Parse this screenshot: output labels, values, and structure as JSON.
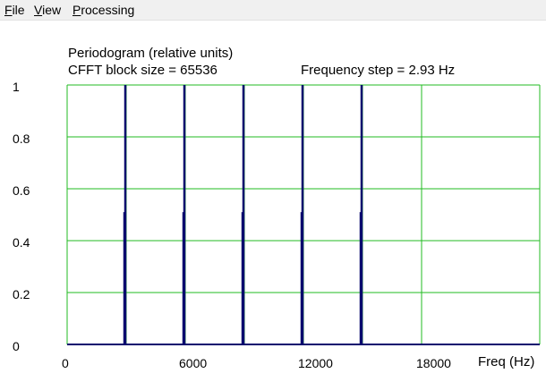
{
  "menu": {
    "items": [
      {
        "mnemonic": "F",
        "rest": "ile"
      },
      {
        "mnemonic": "V",
        "rest": "iew"
      },
      {
        "mnemonic": "P",
        "rest": "rocessing"
      }
    ]
  },
  "header": {
    "title": "Periodogram  (relative units)",
    "block_size": "CFFT block size = 65536",
    "freq_step": "Frequency step =  2.93  Hz"
  },
  "colors": {
    "grid": "#22bb22",
    "bars": "#0a0a6e",
    "axis": "#0a0a6e"
  },
  "chart_data": {
    "type": "bar",
    "title": "Periodogram  (relative units)",
    "xlabel": "Freq (Hz)",
    "ylabel": "",
    "xlim": [
      0,
      24000
    ],
    "ylim": [
      0,
      1
    ],
    "grid": true,
    "x_ticks": [
      "0",
      "6000",
      "12000",
      "18000"
    ],
    "y_ticks": [
      "0",
      "0.2",
      "0.4",
      "0.6",
      "0.8",
      "1"
    ],
    "x_tick_values": [
      0,
      6000,
      12000,
      18000
    ],
    "y_tick_values": [
      0,
      0.2,
      0.4,
      0.6,
      0.8,
      1
    ],
    "x_gridlines": [
      0,
      3000,
      6000,
      9000,
      12000,
      15000,
      18000,
      24000
    ],
    "series": [
      {
        "x": [
          3000,
          6000,
          9000,
          12000,
          15000
        ],
        "values": [
          1,
          1,
          1,
          1,
          1
        ]
      }
    ]
  }
}
